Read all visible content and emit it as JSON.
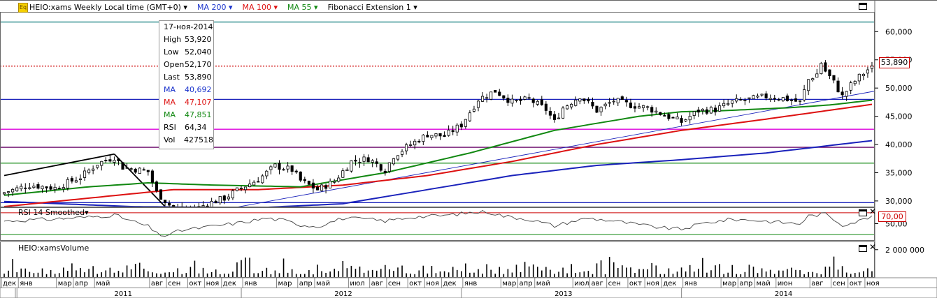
{
  "toolbar": {
    "instrument": "HEIO:xams Weekly Local time (GMT+0)",
    "ma200": "MA 200",
    "ma100": "MA 100",
    "ma55": "MA 55",
    "fib": "Fibonacci Extension 1"
  },
  "tooltip": {
    "date": "17-ноя-2014",
    "rows": [
      {
        "k": "High",
        "v": "53,920",
        "color": "#000000"
      },
      {
        "k": "Low",
        "v": "52,040",
        "color": "#000000"
      },
      {
        "k": "Open",
        "v": "52,170",
        "color": "#000000"
      },
      {
        "k": "Last",
        "v": "53,890",
        "color": "#000000"
      },
      {
        "k": "MA",
        "v": "40,692",
        "color": "#1a33cc"
      },
      {
        "k": "MA",
        "v": "47,107",
        "color": "#dd1111"
      },
      {
        "k": "MA",
        "v": "47,851",
        "color": "#118811"
      },
      {
        "k": "RSI",
        "v": "64,34",
        "color": "#000000"
      },
      {
        "k": "Vol",
        "v": "427518",
        "color": "#000000"
      }
    ]
  },
  "price_tag": "53,890",
  "rsi_tag": "70,00",
  "rsi_title": "RSI 14 Smoothed",
  "vol_title": "HEIO:xamsVolume",
  "colors": {
    "ma200": "#1a22bb",
    "ma100": "#dd1111",
    "ma55": "#118811",
    "magenta": "#dd00dd",
    "teal": "#228888",
    "purple": "#660066"
  },
  "chart_data": [
    {
      "type": "line",
      "title": "",
      "y_ticks": [
        "60,000",
        "55,000",
        "50,000",
        "45,000",
        "40,000",
        "35,000",
        "30,000"
      ],
      "ylim": [
        29000,
        63500
      ],
      "weeks": 206,
      "candles": {
        "anchors_close": [
          [
            0,
            31.5
          ],
          [
            6,
            32.8
          ],
          [
            12,
            32.3
          ],
          [
            18,
            34.2
          ],
          [
            22,
            36.6
          ],
          [
            26,
            37.8
          ],
          [
            28,
            36.0
          ],
          [
            34,
            35.2
          ],
          [
            36,
            31.5
          ],
          [
            40,
            28.6
          ],
          [
            44,
            28.2
          ],
          [
            48,
            29.5
          ],
          [
            52,
            30.5
          ],
          [
            56,
            32.3
          ],
          [
            60,
            33.8
          ],
          [
            64,
            36.2
          ],
          [
            68,
            35.5
          ],
          [
            70,
            33.6
          ],
          [
            74,
            32.0
          ],
          [
            78,
            33.5
          ],
          [
            82,
            37.0
          ],
          [
            86,
            37.5
          ],
          [
            90,
            35.5
          ],
          [
            92,
            38.0
          ],
          [
            96,
            40.0
          ],
          [
            100,
            41.8
          ],
          [
            104,
            41.5
          ],
          [
            108,
            43.5
          ],
          [
            112,
            48.0
          ],
          [
            116,
            49.5
          ],
          [
            120,
            47.5
          ],
          [
            124,
            48.0
          ],
          [
            128,
            46.2
          ],
          [
            130,
            44.0
          ],
          [
            132,
            46.5
          ],
          [
            136,
            48.6
          ],
          [
            140,
            46.0
          ],
          [
            144,
            47.8
          ],
          [
            148,
            47.0
          ],
          [
            152,
            46.5
          ],
          [
            156,
            45.2
          ],
          [
            160,
            44.0
          ],
          [
            164,
            46.0
          ],
          [
            168,
            46.2
          ],
          [
            172,
            47.5
          ],
          [
            176,
            48.0
          ],
          [
            180,
            48.5
          ],
          [
            184,
            48.2
          ],
          [
            188,
            47.5
          ],
          [
            190,
            51.5
          ],
          [
            192,
            52.5
          ],
          [
            193,
            54.5
          ],
          [
            194,
            53.0
          ],
          [
            196,
            51.0
          ],
          [
            198,
            48.5
          ],
          [
            200,
            50.5
          ],
          [
            202,
            52.0
          ],
          [
            205,
            53.89
          ]
        ],
        "last_close": 53.89
      },
      "series": [
        {
          "name": "MA 200",
          "anchors": [
            [
              0,
              29.9
            ],
            [
              30,
              29.0
            ],
            [
              60,
              28.8
            ],
            [
              80,
              29.5
            ],
            [
              100,
              32.0
            ],
            [
              120,
              34.5
            ],
            [
              140,
              36.3
            ],
            [
              160,
              37.3
            ],
            [
              180,
              38.5
            ],
            [
              205,
              40.69
            ]
          ]
        },
        {
          "name": "MA 100",
          "anchors": [
            [
              0,
              29.0
            ],
            [
              20,
              30.5
            ],
            [
              40,
              32.0
            ],
            [
              60,
              32.0
            ],
            [
              80,
              32.8
            ],
            [
              100,
              34.5
            ],
            [
              120,
              37.0
            ],
            [
              140,
              40.0
            ],
            [
              160,
              42.5
            ],
            [
              180,
              44.5
            ],
            [
              205,
              47.11
            ]
          ]
        },
        {
          "name": "MA 55",
          "anchors": [
            [
              0,
              31.0
            ],
            [
              20,
              32.5
            ],
            [
              34,
              33.2
            ],
            [
              50,
              32.8
            ],
            [
              70,
              32.5
            ],
            [
              90,
              35.0
            ],
            [
              110,
              38.5
            ],
            [
              130,
              42.5
            ],
            [
              150,
              45.0
            ],
            [
              160,
              45.8
            ],
            [
              170,
              46.0
            ],
            [
              185,
              46.5
            ],
            [
              195,
              47.0
            ],
            [
              205,
              47.85
            ]
          ]
        }
      ],
      "h_levels": [
        {
          "value": 61.7,
          "color": "#228888"
        },
        {
          "value": 53.89,
          "color": "#cc0000",
          "dotted": true
        },
        {
          "value": 48.0,
          "color": "#1a22bb"
        },
        {
          "value": 42.7,
          "color": "#dd00dd"
        },
        {
          "value": 39.5,
          "color": "#660066"
        },
        {
          "value": 36.7,
          "color": "#118811"
        },
        {
          "value": 29.7,
          "color": "#1a22bb"
        }
      ],
      "trendlines": [
        {
          "from": [
            0,
            34.5
          ],
          "to": [
            26,
            38.3
          ],
          "color": "#000000"
        },
        {
          "from": [
            26,
            38.3
          ],
          "to": [
            38,
            29.0
          ],
          "color": "#000000"
        },
        {
          "from": [
            52,
            28.5
          ],
          "to": [
            206,
            49.5
          ],
          "color": "#1a22bb"
        }
      ]
    },
    {
      "type": "line",
      "title": "RSI 14 Smoothed",
      "y_ticks": [
        "50,00"
      ],
      "ylim": [
        20,
        80
      ],
      "levels": [
        {
          "value": 70,
          "color": "#cc0000"
        },
        {
          "value": 30,
          "color": "#118811"
        }
      ],
      "anchors": [
        [
          0,
          55
        ],
        [
          10,
          58
        ],
        [
          20,
          62
        ],
        [
          26,
          66
        ],
        [
          30,
          55
        ],
        [
          34,
          45
        ],
        [
          36,
          32
        ],
        [
          38,
          28
        ],
        [
          42,
          38
        ],
        [
          48,
          44
        ],
        [
          56,
          52
        ],
        [
          62,
          60
        ],
        [
          66,
          56
        ],
        [
          70,
          48
        ],
        [
          74,
          45
        ],
        [
          80,
          60
        ],
        [
          86,
          58
        ],
        [
          90,
          55
        ],
        [
          96,
          62
        ],
        [
          104,
          65
        ],
        [
          110,
          70
        ],
        [
          114,
          72
        ],
        [
          118,
          64
        ],
        [
          124,
          58
        ],
        [
          130,
          46
        ],
        [
          134,
          54
        ],
        [
          138,
          60
        ],
        [
          144,
          55
        ],
        [
          150,
          48
        ],
        [
          156,
          42
        ],
        [
          160,
          40
        ],
        [
          166,
          52
        ],
        [
          172,
          58
        ],
        [
          178,
          56
        ],
        [
          184,
          52
        ],
        [
          188,
          50
        ],
        [
          190,
          64
        ],
        [
          194,
          68
        ],
        [
          198,
          48
        ],
        [
          202,
          55
        ],
        [
          205,
          64.34
        ]
      ]
    },
    {
      "type": "bar",
      "title": "HEIO:xamsVolume",
      "y_ticks": [
        "2 000 000"
      ],
      "ylim": [
        0,
        2600000
      ],
      "last_value": 427518
    },
    {
      "type": "axis",
      "months": [
        [
          "дек",
          0
        ],
        [
          "янв",
          4
        ],
        [
          "мар",
          13
        ],
        [
          "апр",
          17
        ],
        [
          "май",
          22
        ],
        [
          "авг",
          35
        ],
        [
          "сен",
          39
        ],
        [
          "окт",
          44
        ],
        [
          "ноя",
          48
        ],
        [
          "дек",
          52
        ],
        [
          "янв",
          57
        ],
        [
          "мар",
          65
        ],
        [
          "апр",
          70
        ],
        [
          "май",
          74
        ],
        [
          "июл",
          82
        ],
        [
          "авг",
          87
        ],
        [
          "сен",
          91
        ],
        [
          "окт",
          96
        ],
        [
          "ноя",
          100
        ],
        [
          "дек",
          104
        ],
        [
          "янв",
          109
        ],
        [
          "мар",
          118
        ],
        [
          "апр",
          122
        ],
        [
          "май",
          126
        ],
        [
          "июл",
          135
        ],
        [
          "авг",
          139
        ],
        [
          "сен",
          143
        ],
        [
          "окт",
          148
        ],
        [
          "ноя",
          152
        ],
        [
          "дек",
          156
        ],
        [
          "янв",
          161
        ],
        [
          "мар",
          170
        ],
        [
          "апр",
          174
        ],
        [
          "май",
          178
        ],
        [
          "июн",
          183
        ],
        [
          "авг",
          191
        ],
        [
          "сен",
          196
        ],
        [
          "окт",
          200
        ],
        [
          "ноя",
          204
        ]
      ],
      "years": [
        [
          "2011",
          28
        ],
        [
          "2012",
          80
        ],
        [
          "2013",
          132
        ],
        [
          "2014",
          184
        ]
      ]
    }
  ]
}
